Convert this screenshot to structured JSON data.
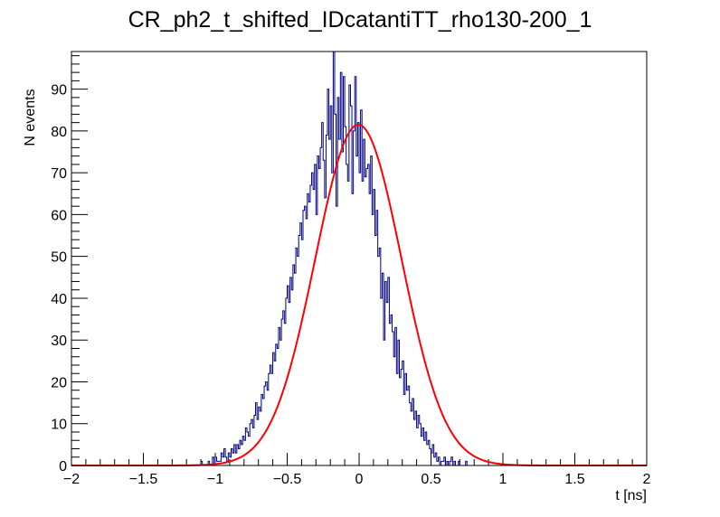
{
  "chart_data": {
    "type": "histogram",
    "title": "CR_ph2_t_shifted_IDcatantiTT_rho130-200_1",
    "xlabel": "t [ns]",
    "ylabel": "N events",
    "xlim": [
      -2,
      2
    ],
    "ylim": [
      0,
      99
    ],
    "x_ticks": [
      "−2",
      "−1.5",
      "−1",
      "−0.5",
      "0",
      "0.5",
      "1",
      "1.5",
      "2"
    ],
    "y_ticks": [
      "0",
      "10",
      "20",
      "30",
      "40",
      "50",
      "60",
      "70",
      "80",
      "90"
    ],
    "bin_width": 0.01,
    "bin_range": [
      -1.3,
      1.3
    ],
    "counts": [
      0,
      0,
      0,
      0,
      0,
      0,
      0,
      0,
      0,
      0,
      0,
      0,
      0,
      0,
      0,
      0,
      0,
      0,
      0,
      0,
      1,
      0,
      0,
      0,
      0,
      1,
      0,
      0,
      2,
      0,
      2,
      1,
      1,
      1,
      3,
      2,
      4,
      2,
      1,
      3,
      2,
      4,
      3,
      5,
      3,
      5,
      4,
      6,
      5,
      7,
      6,
      9,
      8,
      7,
      10,
      11,
      9,
      12,
      15,
      11,
      14,
      13,
      17,
      16,
      19,
      20,
      18,
      22,
      24,
      22,
      27,
      25,
      29,
      28,
      33,
      30,
      35,
      37,
      34,
      40,
      43,
      39,
      45,
      42,
      48,
      46,
      52,
      50,
      55,
      58,
      54,
      61,
      62,
      59,
      65,
      63,
      67,
      70,
      66,
      72,
      60,
      74,
      71,
      76,
      82,
      73,
      64,
      79,
      90,
      78,
      86,
      70,
      99,
      84,
      62,
      88,
      78,
      94,
      75,
      93,
      81,
      72,
      68,
      91,
      86,
      65,
      80,
      93,
      74,
      82,
      70,
      85,
      68,
      78,
      69,
      71,
      72,
      65,
      74,
      60,
      66,
      55,
      61,
      50,
      52,
      40,
      46,
      30,
      44,
      39,
      45,
      34,
      36,
      32,
      26,
      33,
      22,
      30,
      21,
      23,
      25,
      17,
      22,
      18,
      19,
      15,
      13,
      16,
      11,
      13,
      9,
      12,
      10,
      7,
      9,
      6,
      8,
      5,
      6,
      4,
      3,
      5,
      2,
      3,
      1,
      2,
      0,
      1,
      1,
      2,
      0,
      1,
      0,
      1,
      2,
      0,
      1,
      0,
      0,
      1,
      0,
      0,
      0,
      0,
      1,
      0,
      0,
      0,
      0,
      0,
      0,
      0,
      0,
      0,
      0,
      0,
      0,
      0,
      0,
      0,
      0,
      0,
      0,
      0,
      0,
      0,
      0,
      0,
      0,
      0,
      0,
      0,
      0,
      0,
      0,
      0,
      0,
      0,
      0,
      0,
      0,
      0,
      0,
      0,
      0,
      0,
      0,
      0,
      0,
      0,
      0,
      0,
      0,
      0,
      0
    ],
    "series": [
      {
        "name": "histogram",
        "color": "#000080"
      },
      {
        "name": "gaussian-fit",
        "color": "#ff0000",
        "amplitude": 81.5,
        "mean": -0.005,
        "sigma": 0.3
      }
    ]
  }
}
